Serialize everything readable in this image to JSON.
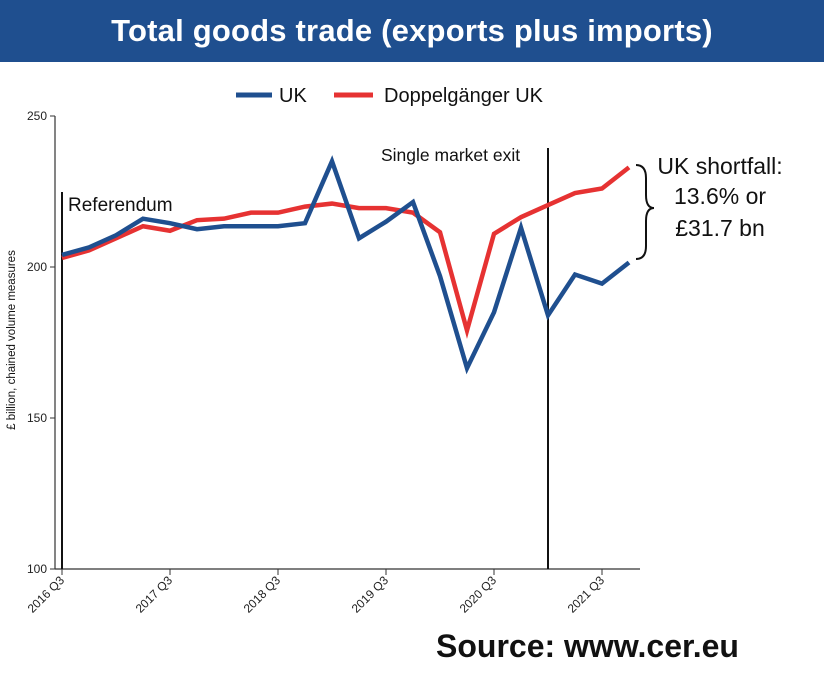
{
  "chart_data": {
    "type": "line",
    "title": "Total goods trade (exports plus imports)",
    "ylabel": "£ billion, chained volume measures",
    "xlabel": "",
    "ylim": [
      100,
      250
    ],
    "yticks": [
      100,
      150,
      200,
      250
    ],
    "x": [
      "2016 Q3",
      "2016 Q4",
      "2017 Q1",
      "2017 Q2",
      "2017 Q3",
      "2017 Q4",
      "2018 Q1",
      "2018 Q2",
      "2018 Q3",
      "2018 Q4",
      "2019 Q1",
      "2019 Q2",
      "2019 Q3",
      "2019 Q4",
      "2020 Q1",
      "2020 Q2",
      "2020 Q3",
      "2020 Q4",
      "2021 Q1",
      "2021 Q2",
      "2021 Q3",
      "2021 Q4"
    ],
    "x_tick_labels": [
      "2016 Q3",
      "2017 Q3",
      "2018 Q3",
      "2019 Q3",
      "2020 Q3",
      "2021 Q3"
    ],
    "x_tick_indices": [
      0,
      4,
      8,
      12,
      16,
      20
    ],
    "series": [
      {
        "name": "UK",
        "color": "#1f4f8f",
        "values": [
          204,
          206.5,
          210.5,
          216,
          214.5,
          212.5,
          213.5,
          213.5,
          213.5,
          214.5,
          235,
          209.5,
          215,
          221.5,
          197,
          166.5,
          185,
          213,
          184,
          197.5,
          194.5,
          201.5
        ]
      },
      {
        "name": "Doppelgänger UK",
        "color": "#e63232",
        "values": [
          203,
          205.5,
          209.5,
          213.5,
          212,
          215.5,
          216,
          218,
          218,
          220,
          221,
          219.5,
          219.5,
          218,
          211.5,
          179,
          211,
          216.5,
          220.5,
          224.5,
          226,
          233
        ]
      }
    ],
    "legend": {
      "placement": "top-center",
      "items": [
        "UK",
        "Doppelgänger UK"
      ]
    },
    "annotations": {
      "referendum": "Referendum",
      "single_market_exit": "Single market exit",
      "shortfall_line1": "UK shortfall:",
      "shortfall_line2": "13.6% or",
      "shortfall_line3": "£31.7 bn"
    },
    "grid": false
  },
  "source": "Source: www.cer.eu"
}
